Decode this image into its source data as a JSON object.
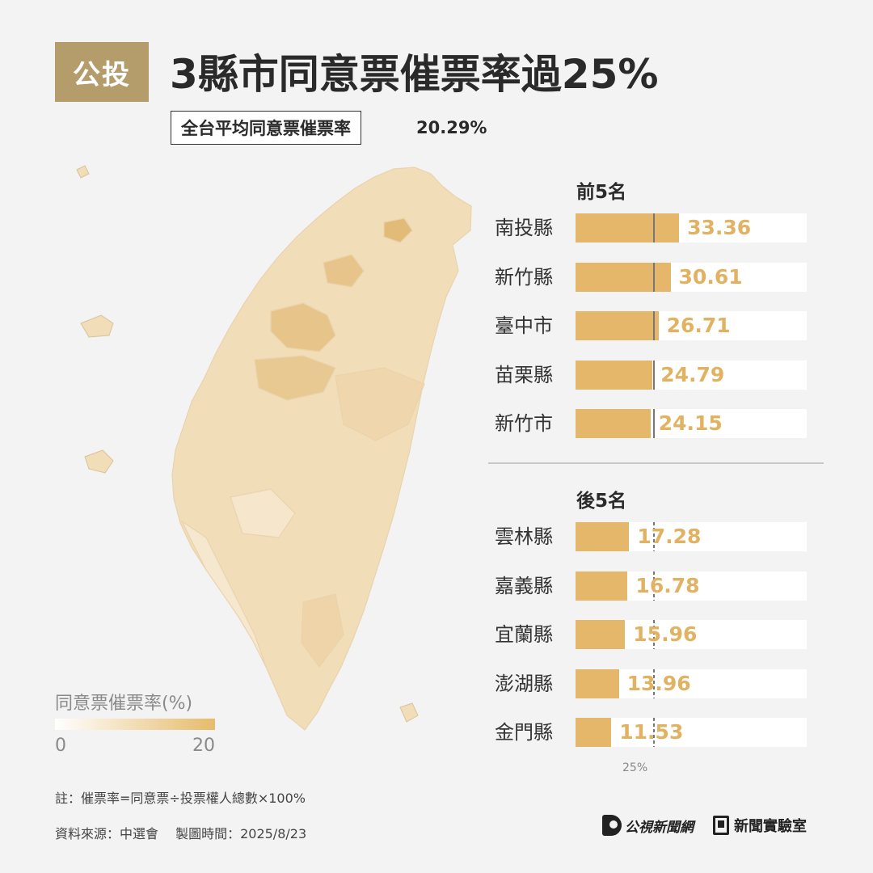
{
  "badge": "公投",
  "title": "3縣市同意票催票率過25%",
  "average": {
    "label": "全台平均同意票催票率",
    "value": "20.29%"
  },
  "legend": {
    "title": "同意票催票率(%)",
    "min": "0",
    "max": "20"
  },
  "colors": {
    "bar": "#e4b76a",
    "value_text": "#e1b262",
    "badge_bg": "#b59c6b",
    "background": "#f3f3f3"
  },
  "chart_data": {
    "type": "bar",
    "orientation": "horizontal",
    "reference_value": 25,
    "reference_label": "25%",
    "groups": [
      {
        "title": "前5名",
        "categories": [
          "南投縣",
          "新竹縣",
          "臺中市",
          "苗栗縣",
          "新竹市"
        ],
        "values": [
          33.36,
          30.61,
          26.71,
          24.79,
          24.15
        ],
        "labels": [
          "33.36",
          "30.61",
          "26.71",
          "24.79",
          "24.15"
        ]
      },
      {
        "title": "後5名",
        "categories": [
          "雲林縣",
          "嘉義縣",
          "宜蘭縣",
          "澎湖縣",
          "金門縣"
        ],
        "values": [
          17.28,
          16.78,
          15.96,
          13.96,
          11.53
        ],
        "labels": [
          "17.28",
          "16.78",
          "15.96",
          "13.96",
          "11.53"
        ]
      }
    ]
  },
  "map": {
    "type": "choropleth",
    "region": "Taiwan",
    "color_range": [
      "#ffffff",
      "#e6bb6b"
    ]
  },
  "footer": {
    "note": "註：催票率=同意票÷投票權人總數×100%",
    "source": "資料來源：中選會　 製圖時間：2025/8/23",
    "logo1": "公視新聞網",
    "logo2": "新聞實驗室"
  }
}
